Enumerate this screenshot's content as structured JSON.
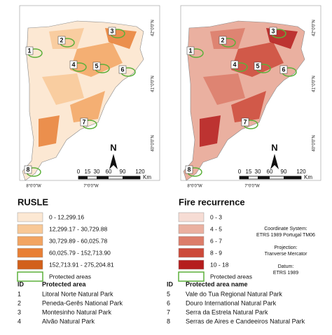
{
  "maps": [
    {
      "lat_labels": [
        "42°0'0\"N",
        "41°0'0\"N",
        "40°0'0\"N"
      ],
      "lon_labels": [
        "8°0'0\"W",
        "7°0'0\"W"
      ],
      "north": "N",
      "scale_ticks": [
        "0",
        "15",
        "30",
        "60",
        "90",
        "120"
      ],
      "scale_unit": "Km",
      "area_ids": [
        "1",
        "2",
        "3",
        "4",
        "5",
        "6",
        "7",
        "8"
      ],
      "fill": [
        "#fce8d3",
        "#f8c896",
        "#f2a462",
        "#e87f35"
      ]
    },
    {
      "lat_labels": [
        "42°0'0\"N",
        "41°0'0\"N",
        "40°0'0\"N"
      ],
      "lon_labels": [
        "8°0'0\"W",
        "7°0'0\"W"
      ],
      "north": "N",
      "scale_ticks": [
        "0",
        "15",
        "30",
        "60",
        "90",
        "120"
      ],
      "scale_unit": "Km",
      "area_ids": [
        "1",
        "2",
        "3",
        "4",
        "5",
        "6",
        "7",
        "8"
      ],
      "fill": [
        "#eab0a0",
        "#dc7d6a",
        "#cc4a3a",
        "#b51d1d"
      ]
    }
  ],
  "legends": [
    {
      "title": "RUSLE",
      "classes": [
        {
          "label": "0 - 12,299.16",
          "color": "#fce8d3"
        },
        {
          "label": "12,299.17 - 30,729.88",
          "color": "#f8c896"
        },
        {
          "label": "30,729.89 - 60,025.78",
          "color": "#f2a462"
        },
        {
          "label": "60,025.79 - 152,713.90",
          "color": "#e87f35"
        },
        {
          "label": "152,713.91 - 275,204.81",
          "color": "#d2601a"
        }
      ],
      "protected": "Protected areas",
      "protected_color": "#5cb03a"
    },
    {
      "title": "Fire recurrence",
      "classes": [
        {
          "label": "0 - 3",
          "color": "#f6dcd4"
        },
        {
          "label": "4 - 5",
          "color": "#eab0a0"
        },
        {
          "label": "6 - 7",
          "color": "#dc7d6a"
        },
        {
          "label": "8 - 9",
          "color": "#cc4a3a"
        },
        {
          "label": "10 - 18",
          "color": "#b51d1d"
        }
      ],
      "protected": "Protected areas",
      "protected_color": "#5cb03a"
    }
  ],
  "projection": [
    "Coordinate System:",
    "ETRS 1989 Portugal TM06",
    "Projection:",
    "Tranverse Mercator",
    "Datum:",
    "ETRS 1989"
  ],
  "table": {
    "header": [
      "ID",
      "Protected area",
      "ID",
      "Protected area name"
    ],
    "rows": [
      [
        "1",
        "Litoral Norte Natural Park",
        "5",
        "Vale do Tua Regional Natural Park"
      ],
      [
        "2",
        "Peneda-Gerês National Park",
        "6",
        "Douro International Natural Park"
      ],
      [
        "3",
        "Montesinho Natural Park",
        "7",
        "Serra da Estrela Natural Park"
      ],
      [
        "4",
        "Alvão Natural Park",
        "8",
        "Serras de Aires e Candeeiros Natural Park"
      ]
    ]
  }
}
